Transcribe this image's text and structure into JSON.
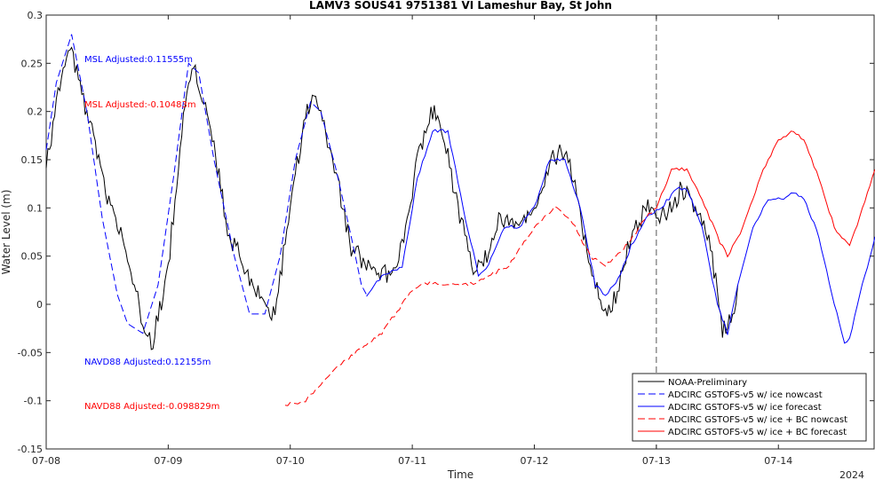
{
  "chart_data": {
    "type": "line",
    "title": "LAMV3 SOUS41 9751381 VI Lameshur Bay, St John",
    "xlabel": "Time",
    "ylabel": "Water Level (m)",
    "year_label": "2024",
    "x_ticks": [
      "07-08",
      "07-09",
      "07-10",
      "07-11",
      "07-12",
      "07-13",
      "07-14"
    ],
    "xlim": [
      "07-08 00:00",
      "07-14 19:00"
    ],
    "ylim": [
      -0.15,
      0.3
    ],
    "y_ticks": [
      "-0.15",
      "-0.1",
      "-0.05",
      "0",
      "0.05",
      "0.1",
      "0.15",
      "0.2",
      "0.25",
      "0.3"
    ],
    "grid": false,
    "legend_position": "bottom-right",
    "vertical_marker": "07-13 00:00",
    "annotations": [
      {
        "text": "MSL Adjusted:0.11555m",
        "color": "#0000ff"
      },
      {
        "text": "MSL Adjusted:-0.10483m",
        "color": "#ff0000"
      },
      {
        "text": "NAVD88 Adjusted:0.12155m",
        "color": "#0000ff"
      },
      {
        "text": "NAVD88 Adjusted:-0.098829m",
        "color": "#ff0000"
      }
    ],
    "series": [
      {
        "name": "NOAA-Preliminary",
        "color": "#000000",
        "style": "solid",
        "noisy": true,
        "points": [
          [
            "07-08 00:00",
            0.14
          ],
          [
            "07-08 03:00",
            0.24
          ],
          [
            "07-08 05:00",
            0.26
          ],
          [
            "07-08 08:00",
            0.2
          ],
          [
            "07-08 12:00",
            0.11
          ],
          [
            "07-08 15:00",
            0.07
          ],
          [
            "07-08 19:00",
            -0.02
          ],
          [
            "07-08 21:00",
            -0.04
          ],
          [
            "07-09 00:00",
            0.04
          ],
          [
            "07-09 03:00",
            0.2
          ],
          [
            "07-09 05:00",
            0.25
          ],
          [
            "07-09 08:00",
            0.19
          ],
          [
            "07-09 12:00",
            0.07
          ],
          [
            "07-09 15:00",
            0.04
          ],
          [
            "07-09 19:00",
            0.0
          ],
          [
            "07-09 21:00",
            -0.01
          ],
          [
            "07-10 00:00",
            0.1
          ],
          [
            "07-10 03:00",
            0.2
          ],
          [
            "07-10 05:00",
            0.21
          ],
          [
            "07-10 08:00",
            0.16
          ],
          [
            "07-10 12:00",
            0.06
          ],
          [
            "07-10 15:00",
            0.04
          ],
          [
            "07-10 19:00",
            0.03
          ],
          [
            "07-10 22:00",
            0.06
          ],
          [
            "07-11 01:00",
            0.15
          ],
          [
            "07-11 04:00",
            0.2
          ],
          [
            "07-11 06:00",
            0.18
          ],
          [
            "07-11 09:00",
            0.1
          ],
          [
            "07-11 12:00",
            0.03
          ],
          [
            "07-11 14:00",
            0.04
          ],
          [
            "07-11 17:00",
            0.09
          ],
          [
            "07-11 19:00",
            0.09
          ],
          [
            "07-11 21:00",
            0.08
          ],
          [
            "07-12 00:00",
            0.1
          ],
          [
            "07-12 03:00",
            0.15
          ],
          [
            "07-12 06:00",
            0.16
          ],
          [
            "07-12 08:00",
            0.12
          ],
          [
            "07-12 11:00",
            0.04
          ],
          [
            "07-12 14:00",
            -0.01
          ],
          [
            "07-12 16:00",
            0.01
          ],
          [
            "07-12 19:00",
            0.07
          ],
          [
            "07-12 22:00",
            0.1
          ],
          [
            "07-13 02:00",
            0.09
          ],
          [
            "07-13 05:00",
            0.12
          ],
          [
            "07-13 08:00",
            0.1
          ],
          [
            "07-13 11:00",
            0.05
          ],
          [
            "07-13 13:00",
            -0.03
          ],
          [
            "07-13 15:00",
            -0.01
          ],
          [
            "07-13 16:00",
            0.02
          ]
        ]
      },
      {
        "name": "ADCIRC GSTOFS-v5 w/ ice nowcast",
        "color": "#0000ff",
        "style": "dashed",
        "noisy": false,
        "points": [
          [
            "07-08 00:00",
            0.16
          ],
          [
            "07-08 02:00",
            0.23
          ],
          [
            "07-08 05:00",
            0.28
          ],
          [
            "07-08 08:00",
            0.2
          ],
          [
            "07-08 11:00",
            0.09
          ],
          [
            "07-08 14:00",
            0.01
          ],
          [
            "07-08 16:00",
            -0.02
          ],
          [
            "07-08 19:00",
            -0.03
          ],
          [
            "07-08 22:00",
            0.02
          ],
          [
            "07-09 01:00",
            0.13
          ],
          [
            "07-09 04:00",
            0.25
          ],
          [
            "07-09 06:00",
            0.24
          ],
          [
            "07-09 09:00",
            0.15
          ],
          [
            "07-09 13:00",
            0.05
          ],
          [
            "07-09 16:00",
            -0.01
          ],
          [
            "07-09 19:00",
            -0.01
          ],
          [
            "07-09 22:00",
            0.05
          ],
          [
            "07-10 01:00",
            0.15
          ],
          [
            "07-10 04:00",
            0.21
          ],
          [
            "07-10 06:00",
            0.2
          ],
          [
            "07-10 09:00",
            0.14
          ],
          [
            "07-10 12:00",
            0.07
          ],
          [
            "07-10 14:00",
            0.02
          ],
          [
            "07-10 15:00",
            0.01
          ]
        ]
      },
      {
        "name": "ADCIRC GSTOFS-v5 w/ ice forecast",
        "color": "#0000ff",
        "style": "solid",
        "noisy": false,
        "points": [
          [
            "07-10 15:00",
            0.01
          ],
          [
            "07-10 18:00",
            0.03
          ],
          [
            "07-10 22:00",
            0.04
          ],
          [
            "07-11 01:00",
            0.13
          ],
          [
            "07-11 04:00",
            0.18
          ],
          [
            "07-11 07:00",
            0.18
          ],
          [
            "07-11 10:00",
            0.1
          ],
          [
            "07-11 13:00",
            0.03
          ],
          [
            "07-11 15:00",
            0.04
          ],
          [
            "07-11 18:00",
            0.08
          ],
          [
            "07-11 21:00",
            0.08
          ],
          [
            "07-12 00:00",
            0.1
          ],
          [
            "07-12 03:00",
            0.15
          ],
          [
            "07-12 06:00",
            0.15
          ],
          [
            "07-12 09:00",
            0.1
          ],
          [
            "07-12 12:00",
            0.02
          ],
          [
            "07-12 14:00",
            0.01
          ],
          [
            "07-12 16:00",
            0.02
          ],
          [
            "07-12 19:00",
            0.06
          ],
          [
            "07-12 22:00",
            0.09
          ],
          [
            "07-13 01:00",
            0.1
          ],
          [
            "07-13 04:00",
            0.12
          ],
          [
            "07-13 06:00",
            0.12
          ],
          [
            "07-13 09:00",
            0.08
          ],
          [
            "07-13 12:00",
            0.0
          ],
          [
            "07-13 14:00",
            -0.03
          ],
          [
            "07-13 16:00",
            0.02
          ],
          [
            "07-13 19:00",
            0.08
          ],
          [
            "07-13 22:00",
            0.11
          ],
          [
            "07-14 01:00",
            0.11
          ],
          [
            "07-14 03:00",
            0.115
          ],
          [
            "07-14 05:00",
            0.11
          ],
          [
            "07-14 08:00",
            0.07
          ],
          [
            "07-14 11:00",
            0.0
          ],
          [
            "07-14 13:00",
            -0.04
          ],
          [
            "07-14 14:00",
            -0.035
          ],
          [
            "07-14 17:00",
            0.03
          ],
          [
            "07-14 19:00",
            0.07
          ]
        ]
      },
      {
        "name": "ADCIRC GSTOFS-v5 w/ ice + BC nowcast",
        "color": "#ff0000",
        "style": "dashed",
        "noisy": false,
        "points": [
          [
            "07-09 23:00",
            -0.105
          ],
          [
            "07-10 03:00",
            -0.1
          ],
          [
            "07-10 08:00",
            -0.07
          ],
          [
            "07-10 13:00",
            -0.05
          ],
          [
            "07-10 18:00",
            -0.03
          ],
          [
            "07-11 00:00",
            0.015
          ],
          [
            "07-11 03:00",
            0.022
          ],
          [
            "07-11 07:00",
            0.02
          ],
          [
            "07-11 11:00",
            0.02
          ],
          [
            "07-11 15:00",
            0.03
          ],
          [
            "07-11 19:00",
            0.04
          ],
          [
            "07-12 00:00",
            0.08
          ],
          [
            "07-12 04:00",
            0.1
          ],
          [
            "07-12 07:00",
            0.09
          ],
          [
            "07-12 11:00",
            0.05
          ],
          [
            "07-12 14:00",
            0.04
          ],
          [
            "07-12 18:00",
            0.06
          ],
          [
            "07-12 22:00",
            0.09
          ],
          [
            "07-13 00:00",
            0.1
          ]
        ]
      },
      {
        "name": "ADCIRC GSTOFS-v5 w/ ice + BC forecast",
        "color": "#ff0000",
        "style": "solid",
        "noisy": false,
        "points": [
          [
            "07-13 00:00",
            0.1
          ],
          [
            "07-13 03:00",
            0.14
          ],
          [
            "07-13 06:00",
            0.14
          ],
          [
            "07-13 09:00",
            0.11
          ],
          [
            "07-13 12:00",
            0.07
          ],
          [
            "07-13 14:00",
            0.05
          ],
          [
            "07-13 17:00",
            0.08
          ],
          [
            "07-13 21:00",
            0.14
          ],
          [
            "07-14 00:00",
            0.17
          ],
          [
            "07-14 03:00",
            0.18
          ],
          [
            "07-14 05:00",
            0.17
          ],
          [
            "07-14 08:00",
            0.13
          ],
          [
            "07-14 11:00",
            0.08
          ],
          [
            "07-14 14:00",
            0.06
          ],
          [
            "07-14 16:00",
            0.09
          ],
          [
            "07-14 19:00",
            0.14
          ]
        ]
      }
    ]
  }
}
